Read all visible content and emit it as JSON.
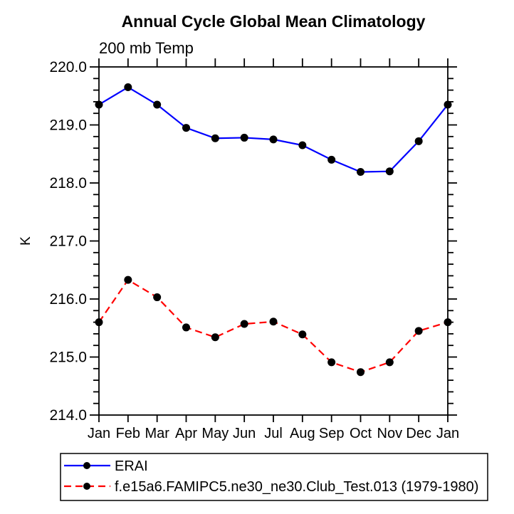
{
  "title": "Annual Cycle Global Mean Climatology",
  "subtitle": "200 mb Temp",
  "ylabel": "K",
  "colors": {
    "erai_line": "#0000ff",
    "model_line": "#ff0000",
    "marker": "#000000",
    "axis": "#000000",
    "background": "#ffffff"
  },
  "chart_data": {
    "type": "line",
    "categories": [
      "Jan",
      "Feb",
      "Mar",
      "Apr",
      "May",
      "Jun",
      "Jul",
      "Aug",
      "Sep",
      "Oct",
      "Nov",
      "Dec",
      "Jan"
    ],
    "series": [
      {
        "name": "ERAI",
        "color": "#0000ff",
        "line_style": "solid",
        "marker": "circle",
        "marker_color": "#000000",
        "values": [
          219.35,
          219.65,
          219.35,
          218.95,
          218.77,
          218.78,
          218.75,
          218.65,
          218.4,
          218.19,
          218.2,
          218.72,
          219.35
        ]
      },
      {
        "name": "f.e15a6.FAMIPC5.ne30_ne30.Club_Test.013 (1979-1980)",
        "color": "#ff0000",
        "line_style": "dashed",
        "marker": "circle",
        "marker_color": "#000000",
        "values": [
          215.6,
          216.33,
          216.03,
          215.51,
          215.34,
          215.57,
          215.61,
          215.39,
          214.91,
          214.74,
          214.91,
          215.45,
          215.6
        ]
      }
    ],
    "title": "Annual Cycle Global Mean Climatology",
    "subtitle": "200 mb Temp",
    "xlabel": "",
    "ylabel": "K",
    "ylim": [
      214.0,
      220.0
    ],
    "ytick_major_interval": 1.0,
    "ytick_minor_interval": 0.2,
    "ytick_labels": [
      "214.0",
      "215.0",
      "216.0",
      "217.0",
      "218.0",
      "219.0",
      "220.0"
    ],
    "grid": false,
    "legend_position": "bottom-left"
  }
}
